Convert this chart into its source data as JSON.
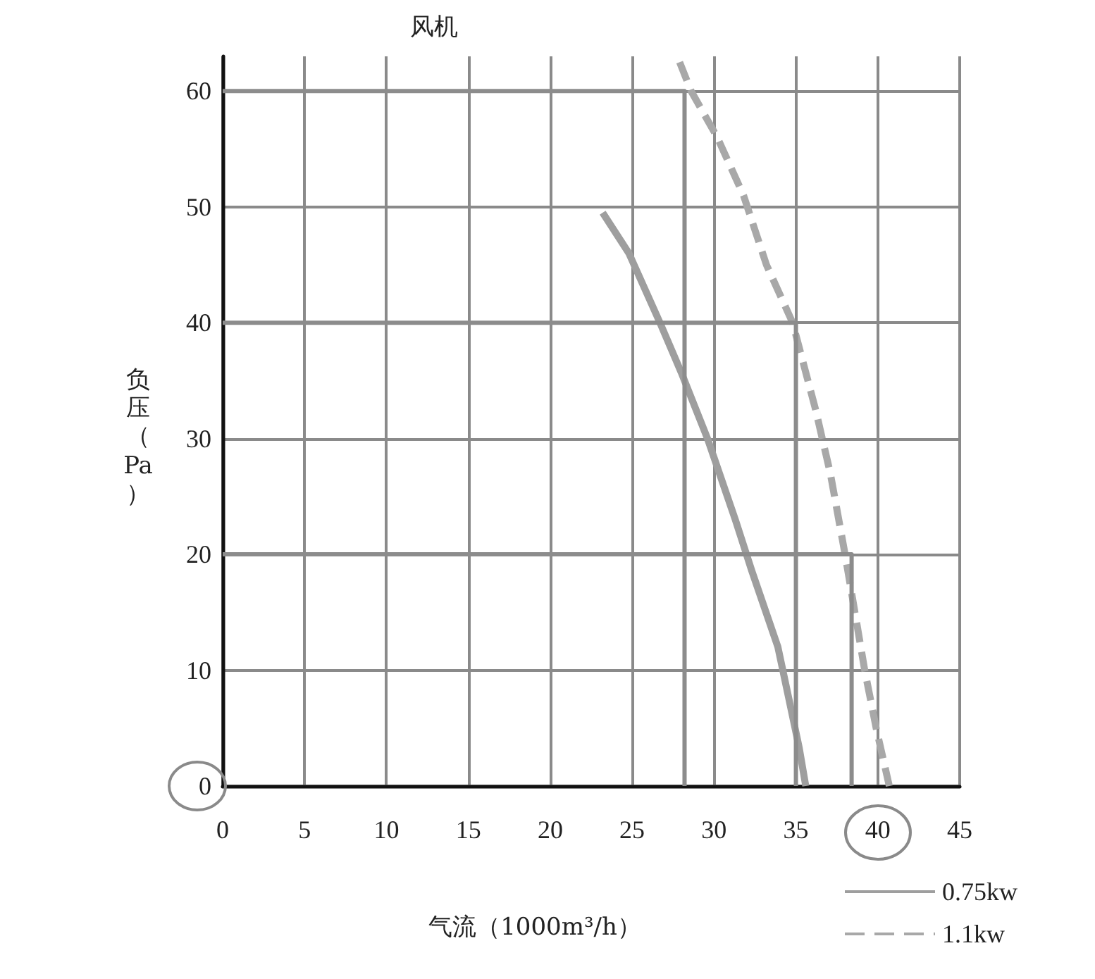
{
  "chart_data": {
    "type": "line",
    "title": "风机",
    "xlabel": "气流（1000m³/h）",
    "ylabel": "负压（Pa）",
    "xlim": [
      0,
      45
    ],
    "xticks": [
      0,
      5,
      10,
      15,
      20,
      25,
      30,
      35,
      40,
      45
    ],
    "ylim": [
      0,
      63
    ],
    "yticks": [
      0,
      10,
      20,
      30,
      40,
      50,
      60
    ],
    "grid": true,
    "legend": "bottom right",
    "marker": "none",
    "series": [
      {
        "name": "0.75kw",
        "color": "#9e9e9e",
        "line_style": "solid",
        "x": [
          23.2,
          24.8,
          26.7,
          28,
          29.6,
          31.3,
          32.3,
          33.9,
          34.5,
          35.2,
          35.6
        ],
        "values": [
          49.5,
          46,
          40,
          35.7,
          30,
          23,
          18.6,
          12,
          8,
          3.3,
          0
        ]
      },
      {
        "name": "1.1kw",
        "color": "#a8a8a8",
        "line_style": "dashed",
        "x": [
          27.9,
          28.6,
          30.2,
          31.8,
          33.2,
          34.8,
          36.2,
          37.1,
          38,
          38.6,
          39.2,
          39.9,
          40.7
        ],
        "values": [
          62.5,
          60,
          56,
          51,
          45,
          40,
          32.5,
          27,
          20,
          15,
          10,
          5,
          0
        ]
      },
      {
        "color": "#8c8c8c",
        "line_style": "solid",
        "x": [
          0,
          28.2,
          28.2
        ],
        "values": [
          60,
          60,
          0
        ]
      },
      {
        "color": "#8c8c8c",
        "line_style": "solid",
        "x": [
          0,
          35,
          35
        ],
        "values": [
          40,
          40,
          0
        ]
      },
      {
        "color": "#8c8c8c",
        "line_style": "solid",
        "x": [
          0,
          38.4,
          38.4
        ],
        "values": [
          20,
          20,
          0
        ]
      }
    ]
  }
}
